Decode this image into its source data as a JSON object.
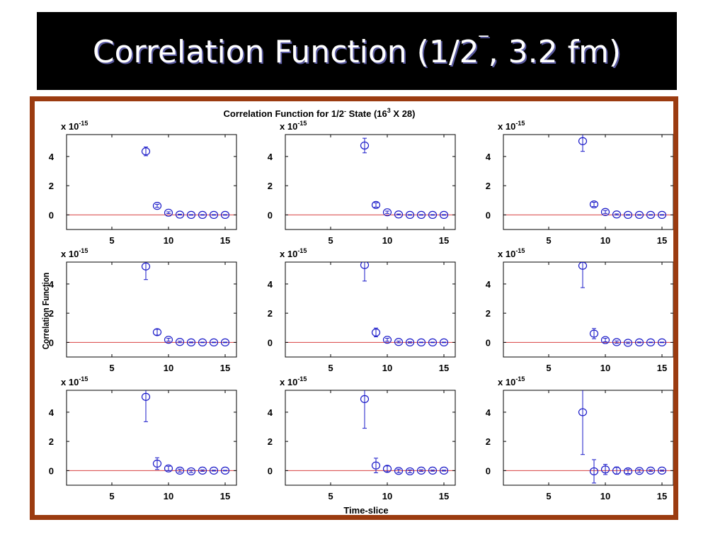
{
  "slide": {
    "title_main": "Correlation Function (1/2",
    "title_sup": "‾",
    "title_rest": ", 3.2 fm)"
  },
  "colors": {
    "marker": "#1a1ac8",
    "zero_line": "#d84040",
    "frame": "#9b3b10"
  },
  "chart_data": {
    "type": "scatter",
    "title_text": "Correlation Function for 1/2",
    "title_sup1": "-",
    "title_mid": " State (16",
    "title_sup2": "3",
    "title_end": " X 28)",
    "xlabel": "Time-slice",
    "ylabel": "Correlation Function",
    "y_multiplier": "x 10",
    "y_multiplier_exp": "-15",
    "xlim": [
      1,
      16
    ],
    "ylim": [
      -1,
      5.5
    ],
    "xticks": [
      5,
      10,
      15
    ],
    "yticks": [
      0,
      2,
      4
    ],
    "zero_line": 0,
    "grid": false,
    "layout": "3x3",
    "panels": [
      {
        "x": [
          8,
          9,
          10,
          11,
          12,
          13,
          14,
          15
        ],
        "y": [
          4.35,
          0.62,
          0.15,
          0.02,
          0.0,
          0.0,
          0.0,
          0.0
        ],
        "err": [
          0.3,
          0.1,
          0.06,
          0.03,
          0.02,
          0.02,
          0.02,
          0.02
        ]
      },
      {
        "x": [
          8,
          9,
          10,
          11,
          12,
          13,
          14,
          15
        ],
        "y": [
          4.75,
          0.68,
          0.18,
          0.03,
          0.0,
          0.0,
          0.0,
          0.0
        ],
        "err": [
          0.5,
          0.15,
          0.08,
          0.03,
          0.02,
          0.02,
          0.02,
          0.02
        ]
      },
      {
        "x": [
          8,
          9,
          10,
          11,
          12,
          13,
          14,
          15
        ],
        "y": [
          5.05,
          0.72,
          0.2,
          0.03,
          0.0,
          0.0,
          0.0,
          0.0
        ],
        "err": [
          0.7,
          0.15,
          0.1,
          0.04,
          0.02,
          0.02,
          0.02,
          0.02
        ]
      },
      {
        "x": [
          8,
          9,
          10,
          11,
          12,
          13,
          14,
          15
        ],
        "y": [
          5.2,
          0.7,
          0.18,
          0.03,
          0.0,
          0.0,
          0.0,
          0.0
        ],
        "err": [
          0.9,
          0.2,
          0.1,
          0.05,
          0.03,
          0.02,
          0.02,
          0.02
        ]
      },
      {
        "x": [
          8,
          9,
          10,
          11,
          12,
          13,
          14,
          15
        ],
        "y": [
          5.3,
          0.68,
          0.18,
          0.03,
          0.0,
          0.0,
          0.0,
          0.0
        ],
        "err": [
          1.1,
          0.3,
          0.1,
          0.06,
          0.04,
          0.02,
          0.02,
          0.02
        ]
      },
      {
        "x": [
          8,
          9,
          10,
          11,
          12,
          13,
          14,
          15
        ],
        "y": [
          5.25,
          0.6,
          0.16,
          0.02,
          -0.03,
          0.0,
          0.0,
          0.0
        ],
        "err": [
          1.5,
          0.35,
          0.12,
          0.08,
          0.05,
          0.03,
          0.02,
          0.02
        ]
      },
      {
        "x": [
          8,
          9,
          10,
          11,
          12,
          13,
          14,
          15
        ],
        "y": [
          5.05,
          0.48,
          0.15,
          0.0,
          -0.05,
          0.0,
          0.0,
          0.0
        ],
        "err": [
          1.7,
          0.4,
          0.15,
          0.1,
          0.08,
          0.05,
          0.03,
          0.02
        ]
      },
      {
        "x": [
          8,
          9,
          10,
          11,
          12,
          13,
          14,
          15
        ],
        "y": [
          4.9,
          0.35,
          0.12,
          -0.02,
          -0.05,
          0.0,
          0.0,
          0.0
        ],
        "err": [
          2.0,
          0.5,
          0.2,
          0.12,
          0.1,
          0.06,
          0.04,
          0.03
        ]
      },
      {
        "x": [
          8,
          9,
          10,
          11,
          12,
          13,
          14,
          15
        ],
        "y": [
          4.0,
          -0.05,
          0.08,
          0.0,
          -0.05,
          -0.02,
          0.0,
          0.0
        ],
        "err": [
          2.9,
          0.8,
          0.35,
          0.25,
          0.15,
          0.1,
          0.06,
          0.04
        ]
      }
    ]
  }
}
